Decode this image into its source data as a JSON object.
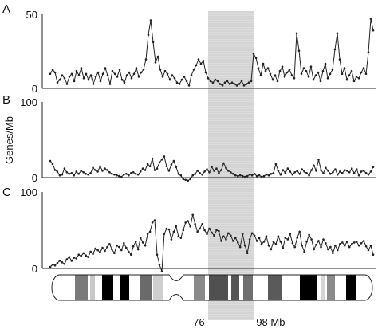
{
  "chart_data": {
    "type": "line",
    "ylabel": "Genes/Mb",
    "highlight_region": {
      "start_label": "76-",
      "end_label": "-98 Mb"
    },
    "panels": [
      {
        "label": "A",
        "ylim": [
          0,
          50
        ],
        "yticks": [
          "0",
          "50"
        ],
        "values": [
          10,
          13,
          11,
          4,
          6,
          9,
          7,
          3,
          8,
          10,
          5,
          12,
          9,
          14,
          7,
          10,
          6,
          9,
          3,
          8,
          11,
          5,
          10,
          14,
          9,
          3,
          12,
          10,
          8,
          13,
          6,
          4,
          9,
          11,
          7,
          10,
          14,
          8,
          11,
          13,
          20,
          37,
          47,
          32,
          18,
          22,
          13,
          8,
          12,
          10,
          6,
          9,
          7,
          4,
          3,
          6,
          8,
          5,
          2,
          9,
          13,
          16,
          20,
          17,
          19,
          11,
          7,
          5,
          4,
          6,
          5,
          3,
          2,
          4,
          5,
          3,
          4,
          3,
          2,
          3,
          5,
          2,
          3,
          4,
          5,
          24,
          21,
          14,
          9,
          17,
          12,
          14,
          10,
          6,
          9,
          5,
          12,
          15,
          8,
          11,
          13,
          9,
          7,
          38,
          26,
          10,
          14,
          12,
          8,
          15,
          6,
          9,
          11,
          5,
          12,
          17,
          7,
          10,
          13,
          27,
          38,
          20,
          10,
          14,
          6,
          9,
          12,
          5,
          8,
          7,
          11,
          14,
          10,
          25,
          48,
          40
        ]
      },
      {
        "label": "B",
        "ylim": [
          0,
          100
        ],
        "yticks": [
          "0",
          "100"
        ],
        "values": [
          22,
          18,
          10,
          8,
          3,
          4,
          12,
          7,
          5,
          6,
          3,
          8,
          5,
          9,
          7,
          5,
          4,
          6,
          13,
          10,
          8,
          15,
          9,
          12,
          10,
          7,
          5,
          4,
          3,
          2,
          1,
          4,
          5,
          3,
          6,
          7,
          5,
          4,
          8,
          12,
          10,
          18,
          15,
          25,
          10,
          12,
          20,
          24,
          28,
          15,
          9,
          17,
          22,
          14,
          5,
          3,
          -2,
          -3,
          -4,
          -2,
          3,
          5,
          9,
          6,
          4,
          8,
          11,
          7,
          14,
          9,
          12,
          6,
          10,
          19,
          13,
          9,
          7,
          5,
          3,
          2,
          3,
          2,
          1,
          2,
          4,
          3,
          5,
          2,
          3,
          1,
          2,
          4,
          3,
          5,
          6,
          18,
          9,
          4,
          10,
          6,
          12,
          8,
          4,
          7,
          9,
          5,
          11,
          8,
          6,
          3,
          10,
          16,
          9,
          24,
          10,
          6,
          13,
          9,
          5,
          7,
          11,
          4,
          8,
          6,
          10,
          9,
          7,
          12,
          6,
          11,
          3,
          8,
          9,
          6,
          4,
          8,
          14
        ]
      },
      {
        "label": "C",
        "ylim": [
          0,
          100
        ],
        "yticks": [
          "0",
          "100"
        ],
        "values": [
          2,
          5,
          4,
          7,
          10,
          8,
          6,
          12,
          15,
          10,
          14,
          13,
          18,
          16,
          20,
          17,
          15,
          22,
          19,
          26,
          24,
          21,
          27,
          23,
          28,
          32,
          25,
          20,
          30,
          28,
          24,
          33,
          27,
          22,
          18,
          29,
          35,
          25,
          40,
          34,
          30,
          45,
          48,
          60,
          63,
          18,
          5,
          -4,
          45,
          52,
          51,
          38,
          48,
          55,
          42,
          40,
          50,
          60,
          62,
          55,
          70,
          58,
          48,
          52,
          58,
          50,
          45,
          52,
          47,
          43,
          50,
          49,
          36,
          42,
          38,
          46,
          43,
          36,
          40,
          34,
          28,
          45,
          30,
          20,
          38,
          46,
          43,
          36,
          40,
          32,
          35,
          42,
          30,
          25,
          35,
          32,
          42,
          35,
          27,
          40,
          38,
          45,
          33,
          28,
          40,
          48,
          30,
          22,
          35,
          44,
          38,
          25,
          31,
          36,
          28,
          38,
          33,
          25,
          28,
          20,
          30,
          24,
          32,
          34,
          30,
          35,
          28,
          32,
          34,
          35,
          30,
          33,
          36,
          29,
          24,
          30,
          18
        ]
      }
    ]
  }
}
